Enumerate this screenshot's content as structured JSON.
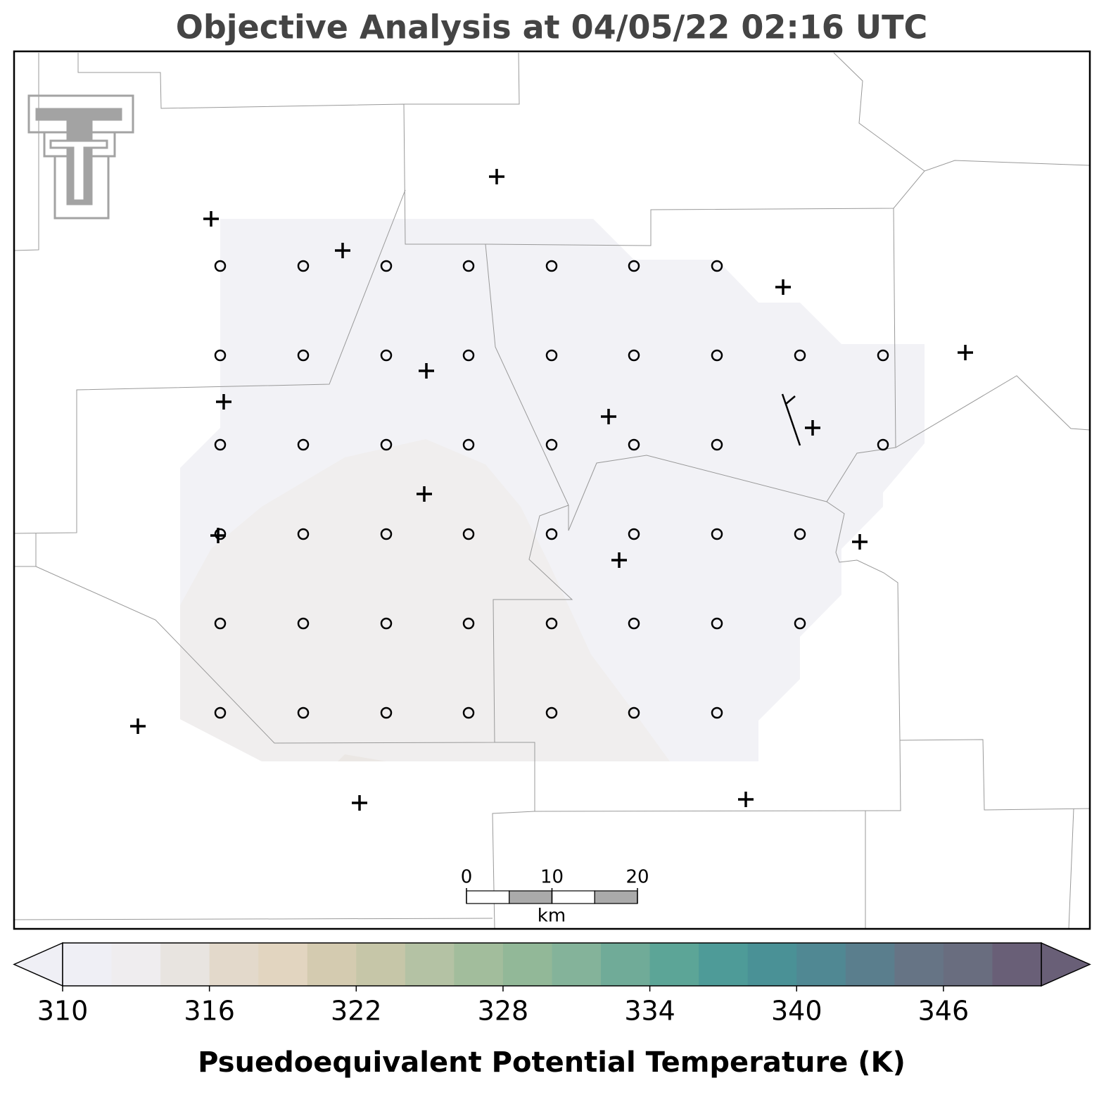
{
  "title": "Objective Analysis at 04/05/22 02:16 UTC",
  "scale_bar": {
    "ticks": [
      0,
      10,
      20
    ],
    "unit": "km"
  },
  "colorbar": {
    "label": "Psuedoequivalent Potential Temperature (K)",
    "lim": [
      310,
      350
    ],
    "ticks": [
      310,
      316,
      322,
      328,
      334,
      340,
      346
    ],
    "extend": "both",
    "colors": [
      "#efeff5",
      "#efedef",
      "#e8e4e0",
      "#e3d9cb",
      "#e2d5c0",
      "#d4cbb0",
      "#c6c6a8",
      "#b4c2a4",
      "#a2bd9c",
      "#92b898",
      "#84b39a",
      "#70ab98",
      "#5ca597",
      "#4e9b98",
      "#4a9196",
      "#508893",
      "#5a7e8d",
      "#667485",
      "#696d7f",
      "#695f77"
    ]
  }
}
